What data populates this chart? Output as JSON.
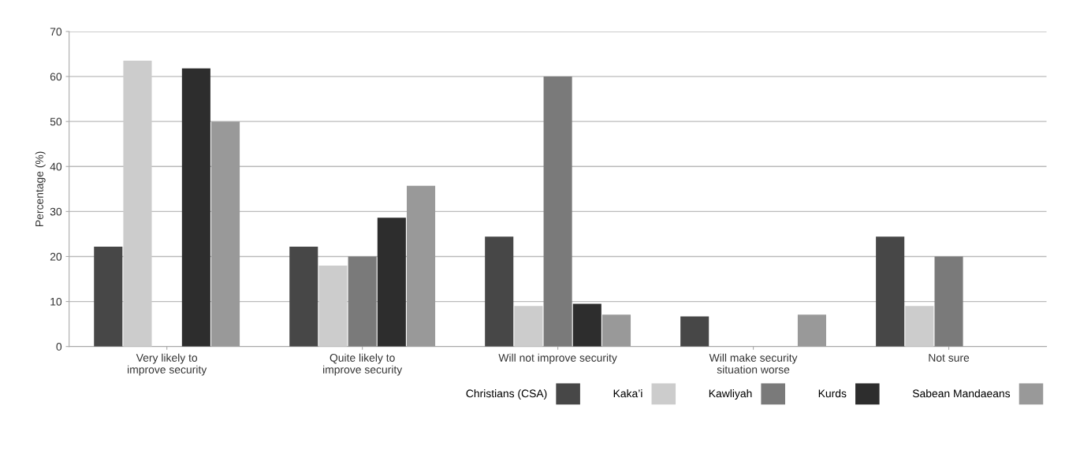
{
  "chart_data": {
    "type": "bar",
    "ylabel": "Percentage (%)",
    "categories": [
      "Very likely to\nimprove security",
      "Quite likely to\nimprove security",
      "Will not improve security",
      "Will make security\nsituation worse",
      "Not sure"
    ],
    "series": [
      {
        "name": "Christians (CSA)",
        "color": "#474747",
        "values": [
          22.2,
          22.2,
          24.4,
          6.7,
          24.4
        ]
      },
      {
        "name": "Kaka’i",
        "color": "#cccccc",
        "values": [
          63.5,
          18,
          9,
          0,
          9
        ]
      },
      {
        "name": "Kawliyah",
        "color": "#7a7a7a",
        "values": [
          0,
          20,
          60,
          0,
          20
        ]
      },
      {
        "name": "Kurds",
        "color": "#2d2d2d",
        "values": [
          61.8,
          28.6,
          9.5,
          0,
          0
        ]
      },
      {
        "name": "Sabean Mandaeans",
        "color": "#999999",
        "values": [
          50,
          35.7,
          7.1,
          7.1,
          0
        ]
      }
    ],
    "ylim": [
      0,
      70
    ],
    "yticks": [
      0,
      10,
      20,
      30,
      40,
      50,
      60,
      70
    ],
    "grid": "y",
    "legend": "bottom right"
  }
}
